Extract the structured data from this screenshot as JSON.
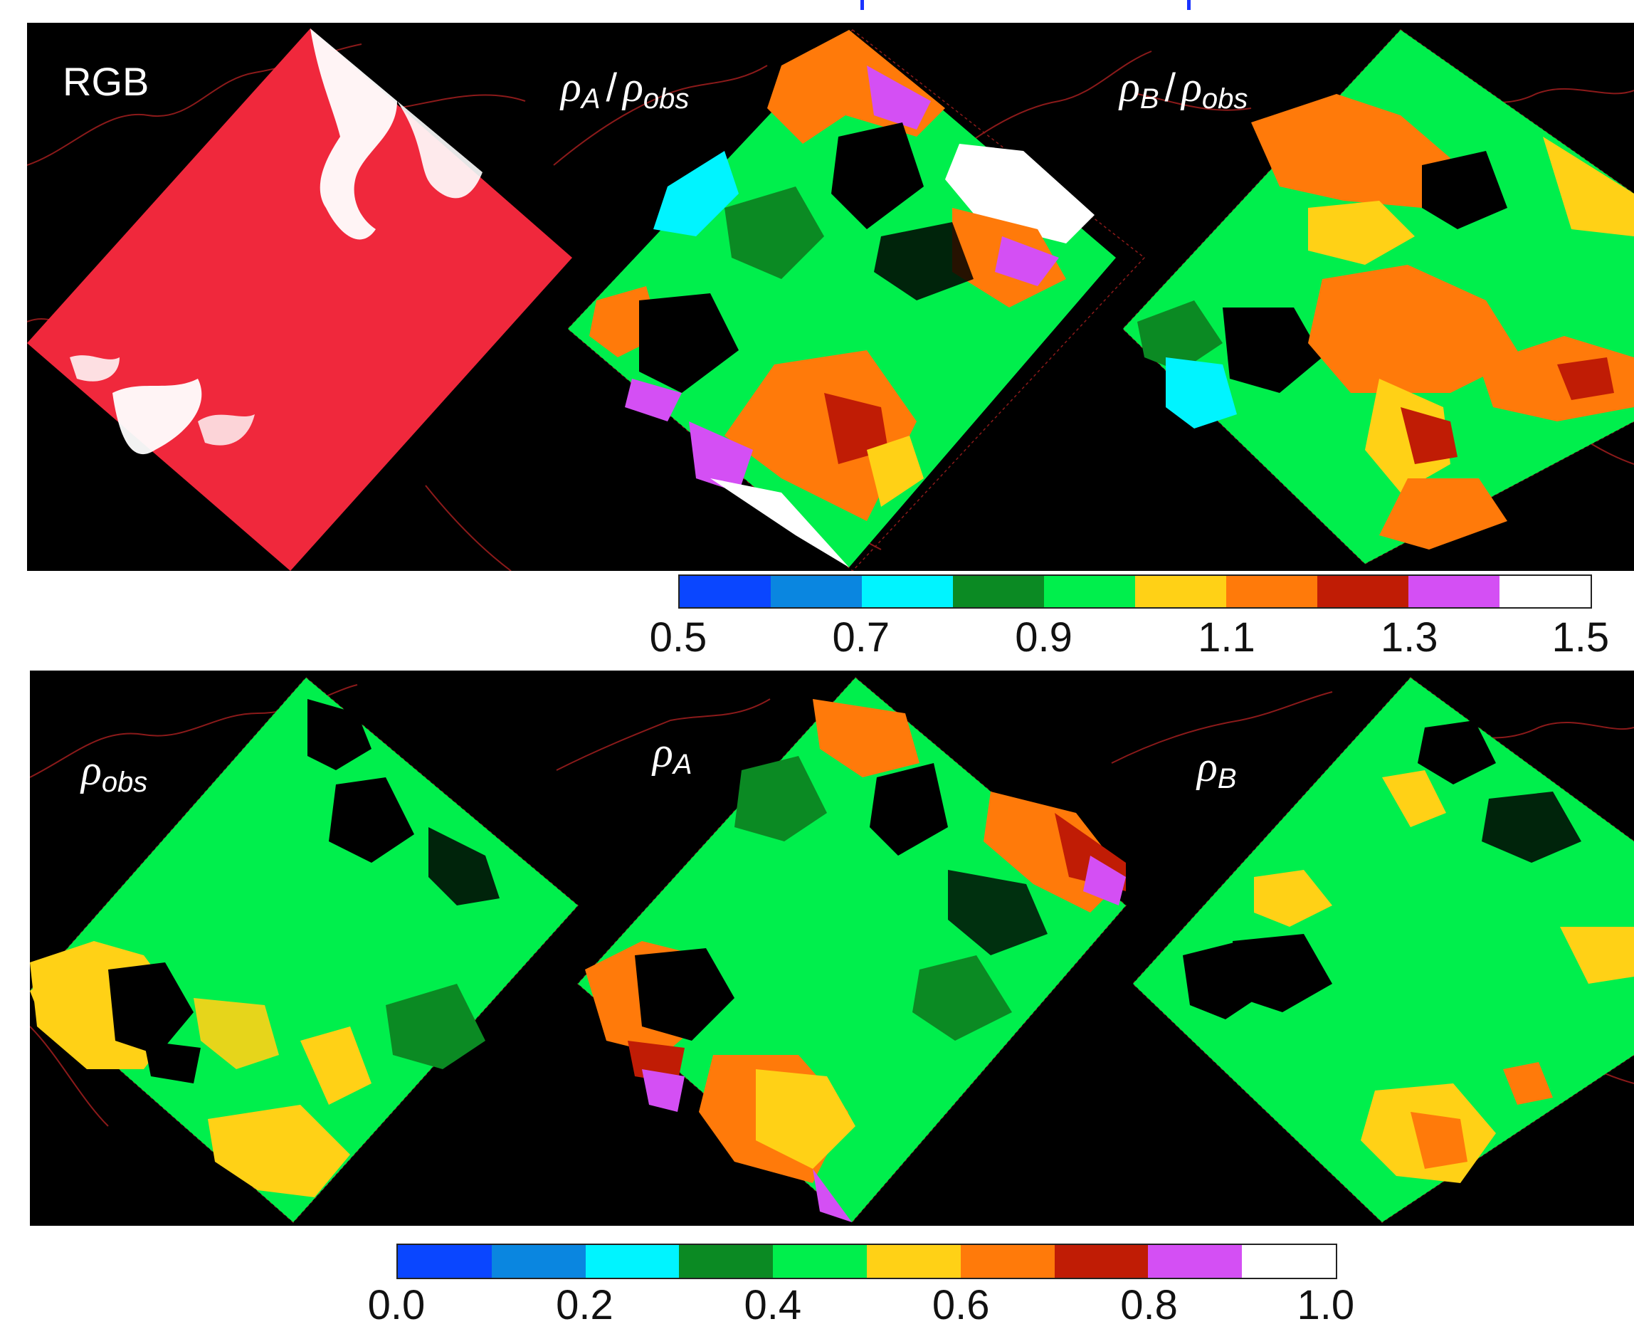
{
  "top_row": {
    "panels": [
      {
        "label_main": "RGB",
        "label_type": "text"
      },
      {
        "label_num_sym": "ρ",
        "label_num_sub": "A",
        "label_den_sym": "ρ",
        "label_den_sub": "obs",
        "label_type": "ratio"
      },
      {
        "label_num_sym": "ρ",
        "label_num_sub": "B",
        "label_den_sym": "ρ",
        "label_den_sub": "obs",
        "label_type": "ratio"
      }
    ]
  },
  "colorbar_top": {
    "colors": [
      "#0a46ff",
      "#0a86e0",
      "#00f4ff",
      "#0b8a23",
      "#00ef4c",
      "#ffd116",
      "#ff7a0a",
      "#c01c05",
      "#d44ff4",
      "#ffffff"
    ],
    "ticks": [
      "0.5",
      "0.7",
      "0.9",
      "1.1",
      "1.3",
      "1.5"
    ]
  },
  "bottom_row": {
    "panels": [
      {
        "label_sym": "ρ",
        "label_sub": "obs"
      },
      {
        "label_sym": "ρ",
        "label_sub": "A"
      },
      {
        "label_sym": "ρ",
        "label_sub": "B"
      }
    ]
  },
  "colorbar_bottom": {
    "colors": [
      "#0a46ff",
      "#0a86e0",
      "#00f4ff",
      "#0b8a23",
      "#00ef4c",
      "#ffd116",
      "#ff7a0a",
      "#c01c05",
      "#d44ff4",
      "#ffffff"
    ],
    "ticks": [
      "0.0",
      "0.2",
      "0.4",
      "0.6",
      "0.8",
      "1.0"
    ]
  },
  "palette": {
    "background": "#000000",
    "border_lines": "#8b1a1a",
    "rgb_scene": "#f0283c",
    "cloud": "#ffffff",
    "marker": "#1a33ff"
  }
}
